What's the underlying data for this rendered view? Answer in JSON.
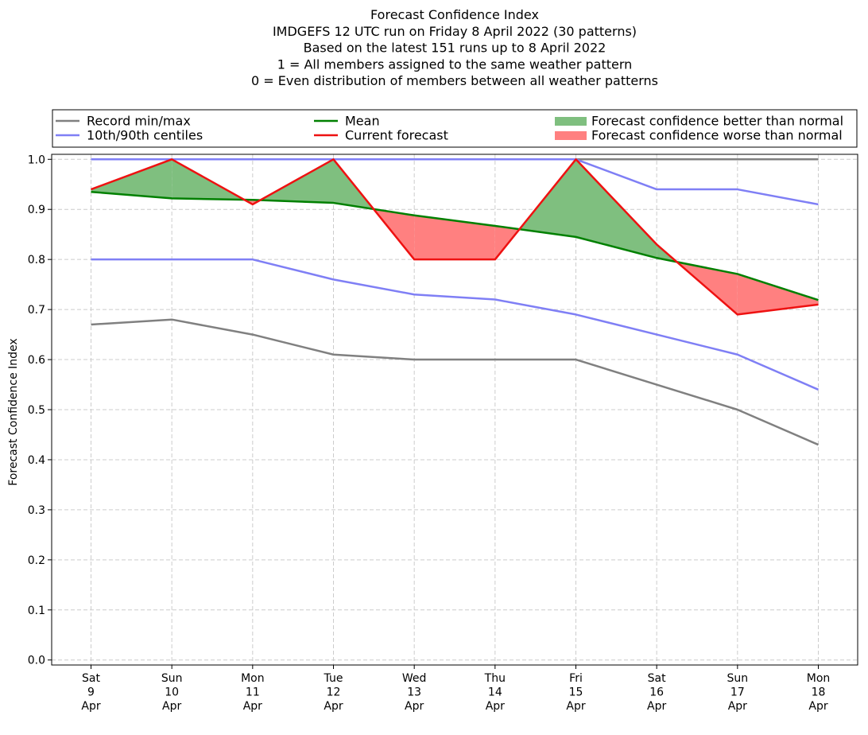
{
  "chart_data": {
    "type": "line",
    "title_lines": [
      "Forecast Confidence Index",
      "IMDGEFS 12 UTC run on Friday 8 April 2022 (30 patterns)",
      "Based on the latest 151 runs up to 8 April 2022",
      "1 = All members assigned to the same weather pattern",
      "0 = Even distribution of members between all weather patterns"
    ],
    "ylabel": "Forecast Confidence Index",
    "xlabel": "",
    "categories": [
      {
        "day": "Sat",
        "date": "9",
        "month": "Apr"
      },
      {
        "day": "Sun",
        "date": "10",
        "month": "Apr"
      },
      {
        "day": "Mon",
        "date": "11",
        "month": "Apr"
      },
      {
        "day": "Tue",
        "date": "12",
        "month": "Apr"
      },
      {
        "day": "Wed",
        "date": "13",
        "month": "Apr"
      },
      {
        "day": "Thu",
        "date": "14",
        "month": "Apr"
      },
      {
        "day": "Fri",
        "date": "15",
        "month": "Apr"
      },
      {
        "day": "Sat",
        "date": "16",
        "month": "Apr"
      },
      {
        "day": "Sun",
        "date": "17",
        "month": "Apr"
      },
      {
        "day": "Mon",
        "date": "18",
        "month": "Apr"
      }
    ],
    "ylim": [
      -0.01,
      1.01
    ],
    "yticks": [
      "0.0",
      "0.1",
      "0.2",
      "0.3",
      "0.4",
      "0.5",
      "0.6",
      "0.7",
      "0.8",
      "0.9",
      "1.0"
    ],
    "grid": true,
    "legend_position": "top",
    "series": [
      {
        "key": "record_min",
        "values": [
          0.67,
          0.68,
          0.65,
          0.61,
          0.6,
          0.6,
          0.6,
          0.55,
          0.5,
          0.43
        ],
        "color": "#808080"
      },
      {
        "key": "record_max",
        "values": [
          1.0,
          1.0,
          1.0,
          1.0,
          1.0,
          1.0,
          1.0,
          1.0,
          1.0,
          1.0
        ],
        "color": "#808080"
      },
      {
        "key": "p10",
        "values": [
          0.8,
          0.8,
          0.8,
          0.76,
          0.73,
          0.72,
          0.69,
          0.65,
          0.61,
          0.54
        ],
        "color": "#7f7ff5"
      },
      {
        "key": "p90",
        "values": [
          1.0,
          1.0,
          1.0,
          1.0,
          1.0,
          1.0,
          1.0,
          0.94,
          0.94,
          0.91
        ],
        "color": "#7f7ff5"
      },
      {
        "key": "mean",
        "values": [
          0.935,
          0.922,
          0.919,
          0.913,
          0.888,
          0.867,
          0.845,
          0.803,
          0.771,
          0.719
        ],
        "color": "#008000"
      },
      {
        "key": "current",
        "values": [
          0.94,
          1.0,
          0.91,
          1.0,
          0.8,
          0.8,
          1.0,
          0.83,
          0.69,
          0.71
        ],
        "color": "#ee1111"
      }
    ],
    "legend": [
      {
        "label": "Record min/max",
        "kind": "line",
        "color": "#808080"
      },
      {
        "label": "Mean",
        "kind": "line",
        "color": "#008000"
      },
      {
        "label": "Forecast confidence better than normal",
        "kind": "patch",
        "color": "#7fbf7f"
      },
      {
        "label": "10th/90th centiles",
        "kind": "line",
        "color": "#7f7ff5"
      },
      {
        "label": "Current forecast",
        "kind": "line",
        "color": "#ee1111"
      },
      {
        "label": "Forecast confidence worse than normal",
        "kind": "patch",
        "color": "#ff8080"
      }
    ],
    "fill_better_color": "#7fbf7f",
    "fill_worse_color": "#ff8080"
  }
}
